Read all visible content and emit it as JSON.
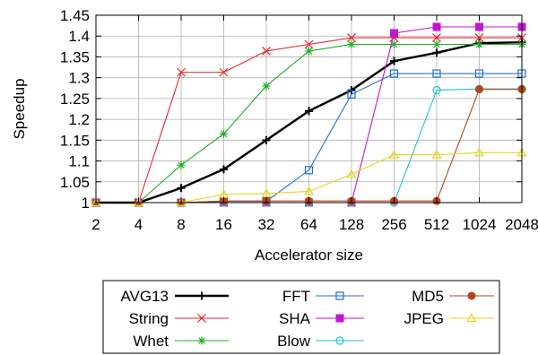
{
  "chart_data": {
    "type": "line",
    "xlabel": "Accelerator size",
    "ylabel": "Speedup",
    "x": [
      "2",
      "4",
      "8",
      "16",
      "32",
      "64",
      "128",
      "256",
      "512",
      "1024",
      "2048"
    ],
    "ylim": [
      1,
      1.45
    ],
    "yticks": [
      "1",
      "1.05",
      "1.1",
      "1.15",
      "1.2",
      "1.25",
      "1.3",
      "1.35",
      "1.4",
      "1.45"
    ],
    "grid": true,
    "legend_position": "bottom",
    "series": [
      {
        "name": "AVG13",
        "color": "#000000",
        "marker": "plus",
        "values": [
          1.0,
          1.0,
          1.035,
          1.08,
          1.15,
          1.22,
          1.27,
          1.34,
          1.36,
          1.383,
          1.385
        ]
      },
      {
        "name": "String",
        "color": "#e8262a",
        "marker": "x",
        "values": [
          1.0,
          1.0,
          1.313,
          1.313,
          1.364,
          1.38,
          1.396,
          1.396,
          1.396,
          1.396,
          1.396
        ]
      },
      {
        "name": "Whet",
        "color": "#1fb025",
        "marker": "star",
        "values": [
          1.0,
          1.0,
          1.09,
          1.165,
          1.28,
          1.364,
          1.38,
          1.38,
          1.38,
          1.38,
          1.38
        ]
      },
      {
        "name": "FFT",
        "color": "#1f6fd6",
        "marker": "open-square",
        "values": [
          1.0,
          1.0,
          1.0,
          1.003,
          1.003,
          1.078,
          1.26,
          1.31,
          1.31,
          1.31,
          1.31
        ]
      },
      {
        "name": "SHA",
        "color": "#c316d4",
        "marker": "filled-square",
        "values": [
          1.0,
          1.0,
          1.0,
          1.0,
          1.0,
          1.0,
          1.0,
          1.407,
          1.422,
          1.422,
          1.422
        ]
      },
      {
        "name": "Blow",
        "color": "#22c3d3",
        "marker": "open-circle",
        "values": [
          1.0,
          1.0,
          1.0,
          1.0,
          1.0,
          1.0,
          1.0,
          1.0,
          1.27,
          1.273,
          1.273
        ]
      },
      {
        "name": "MD5",
        "color": "#b5441b",
        "marker": "filled-circle",
        "values": [
          1.0,
          1.0,
          1.0,
          1.004,
          1.004,
          1.004,
          1.004,
          1.004,
          1.004,
          1.272,
          1.272
        ]
      },
      {
        "name": "JPEG",
        "color": "#e8d41c",
        "marker": "triangle",
        "values": [
          1.0,
          1.0,
          1.0,
          1.02,
          1.022,
          1.027,
          1.068,
          1.115,
          1.115,
          1.12,
          1.12
        ]
      }
    ]
  }
}
